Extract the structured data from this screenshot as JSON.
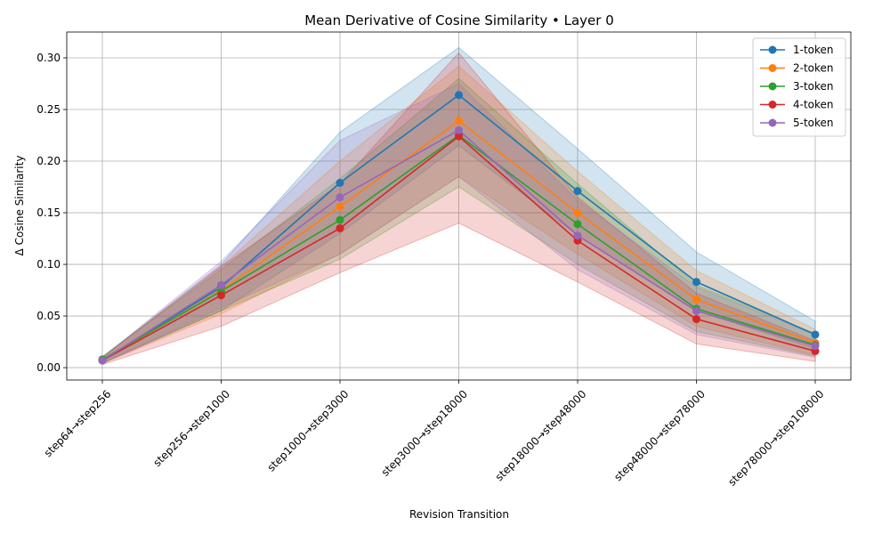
{
  "chart_data": {
    "type": "line",
    "title": "Mean Derivative of Cosine Similarity • Layer 0",
    "xlabel": "Revision Transition",
    "ylabel": "Δ Cosine Similarity",
    "categories": [
      "step64→step256",
      "step256→step1000",
      "step1000→step3000",
      "step3000→step18000",
      "step18000→step48000",
      "step48000→step78000",
      "step78000→step108000"
    ],
    "ylim": [
      -0.012,
      0.325
    ],
    "yticks": [
      0.0,
      0.05,
      0.1,
      0.15,
      0.2,
      0.25,
      0.3
    ],
    "ytick_labels": [
      "0.00",
      "0.05",
      "0.10",
      "0.15",
      "0.20",
      "0.25",
      "0.30"
    ],
    "grid": true,
    "legend_position": "top-right",
    "series": [
      {
        "name": "1-token",
        "color": "#1f77b4",
        "values": [
          0.007,
          0.078,
          0.179,
          0.264,
          0.171,
          0.083,
          0.032
        ],
        "lower": [
          0.004,
          0.055,
          0.13,
          0.215,
          0.128,
          0.055,
          0.018
        ],
        "upper": [
          0.01,
          0.1,
          0.228,
          0.31,
          0.212,
          0.112,
          0.045
        ]
      },
      {
        "name": "2-token",
        "color": "#ff7f0e",
        "values": [
          0.007,
          0.075,
          0.156,
          0.239,
          0.15,
          0.066,
          0.024
        ],
        "lower": [
          0.004,
          0.052,
          0.11,
          0.185,
          0.11,
          0.04,
          0.012
        ],
        "upper": [
          0.01,
          0.098,
          0.2,
          0.292,
          0.19,
          0.094,
          0.037
        ]
      },
      {
        "name": "3-token",
        "color": "#2ca02c",
        "values": [
          0.008,
          0.074,
          0.143,
          0.225,
          0.139,
          0.057,
          0.022
        ],
        "lower": [
          0.005,
          0.055,
          0.105,
          0.175,
          0.1,
          0.035,
          0.011
        ],
        "upper": [
          0.011,
          0.095,
          0.183,
          0.28,
          0.178,
          0.08,
          0.033
        ]
      },
      {
        "name": "4-token",
        "color": "#d62728",
        "values": [
          0.007,
          0.07,
          0.135,
          0.224,
          0.123,
          0.047,
          0.016
        ],
        "lower": [
          0.003,
          0.04,
          0.092,
          0.14,
          0.083,
          0.023,
          0.006
        ],
        "upper": [
          0.01,
          0.098,
          0.178,
          0.305,
          0.165,
          0.072,
          0.026
        ]
      },
      {
        "name": "5-token",
        "color": "#9467bd",
        "values": [
          0.007,
          0.08,
          0.165,
          0.23,
          0.128,
          0.055,
          0.021
        ],
        "lower": [
          0.004,
          0.058,
          0.11,
          0.185,
          0.095,
          0.032,
          0.01
        ],
        "upper": [
          0.01,
          0.103,
          0.22,
          0.275,
          0.162,
          0.078,
          0.032
        ]
      }
    ]
  }
}
